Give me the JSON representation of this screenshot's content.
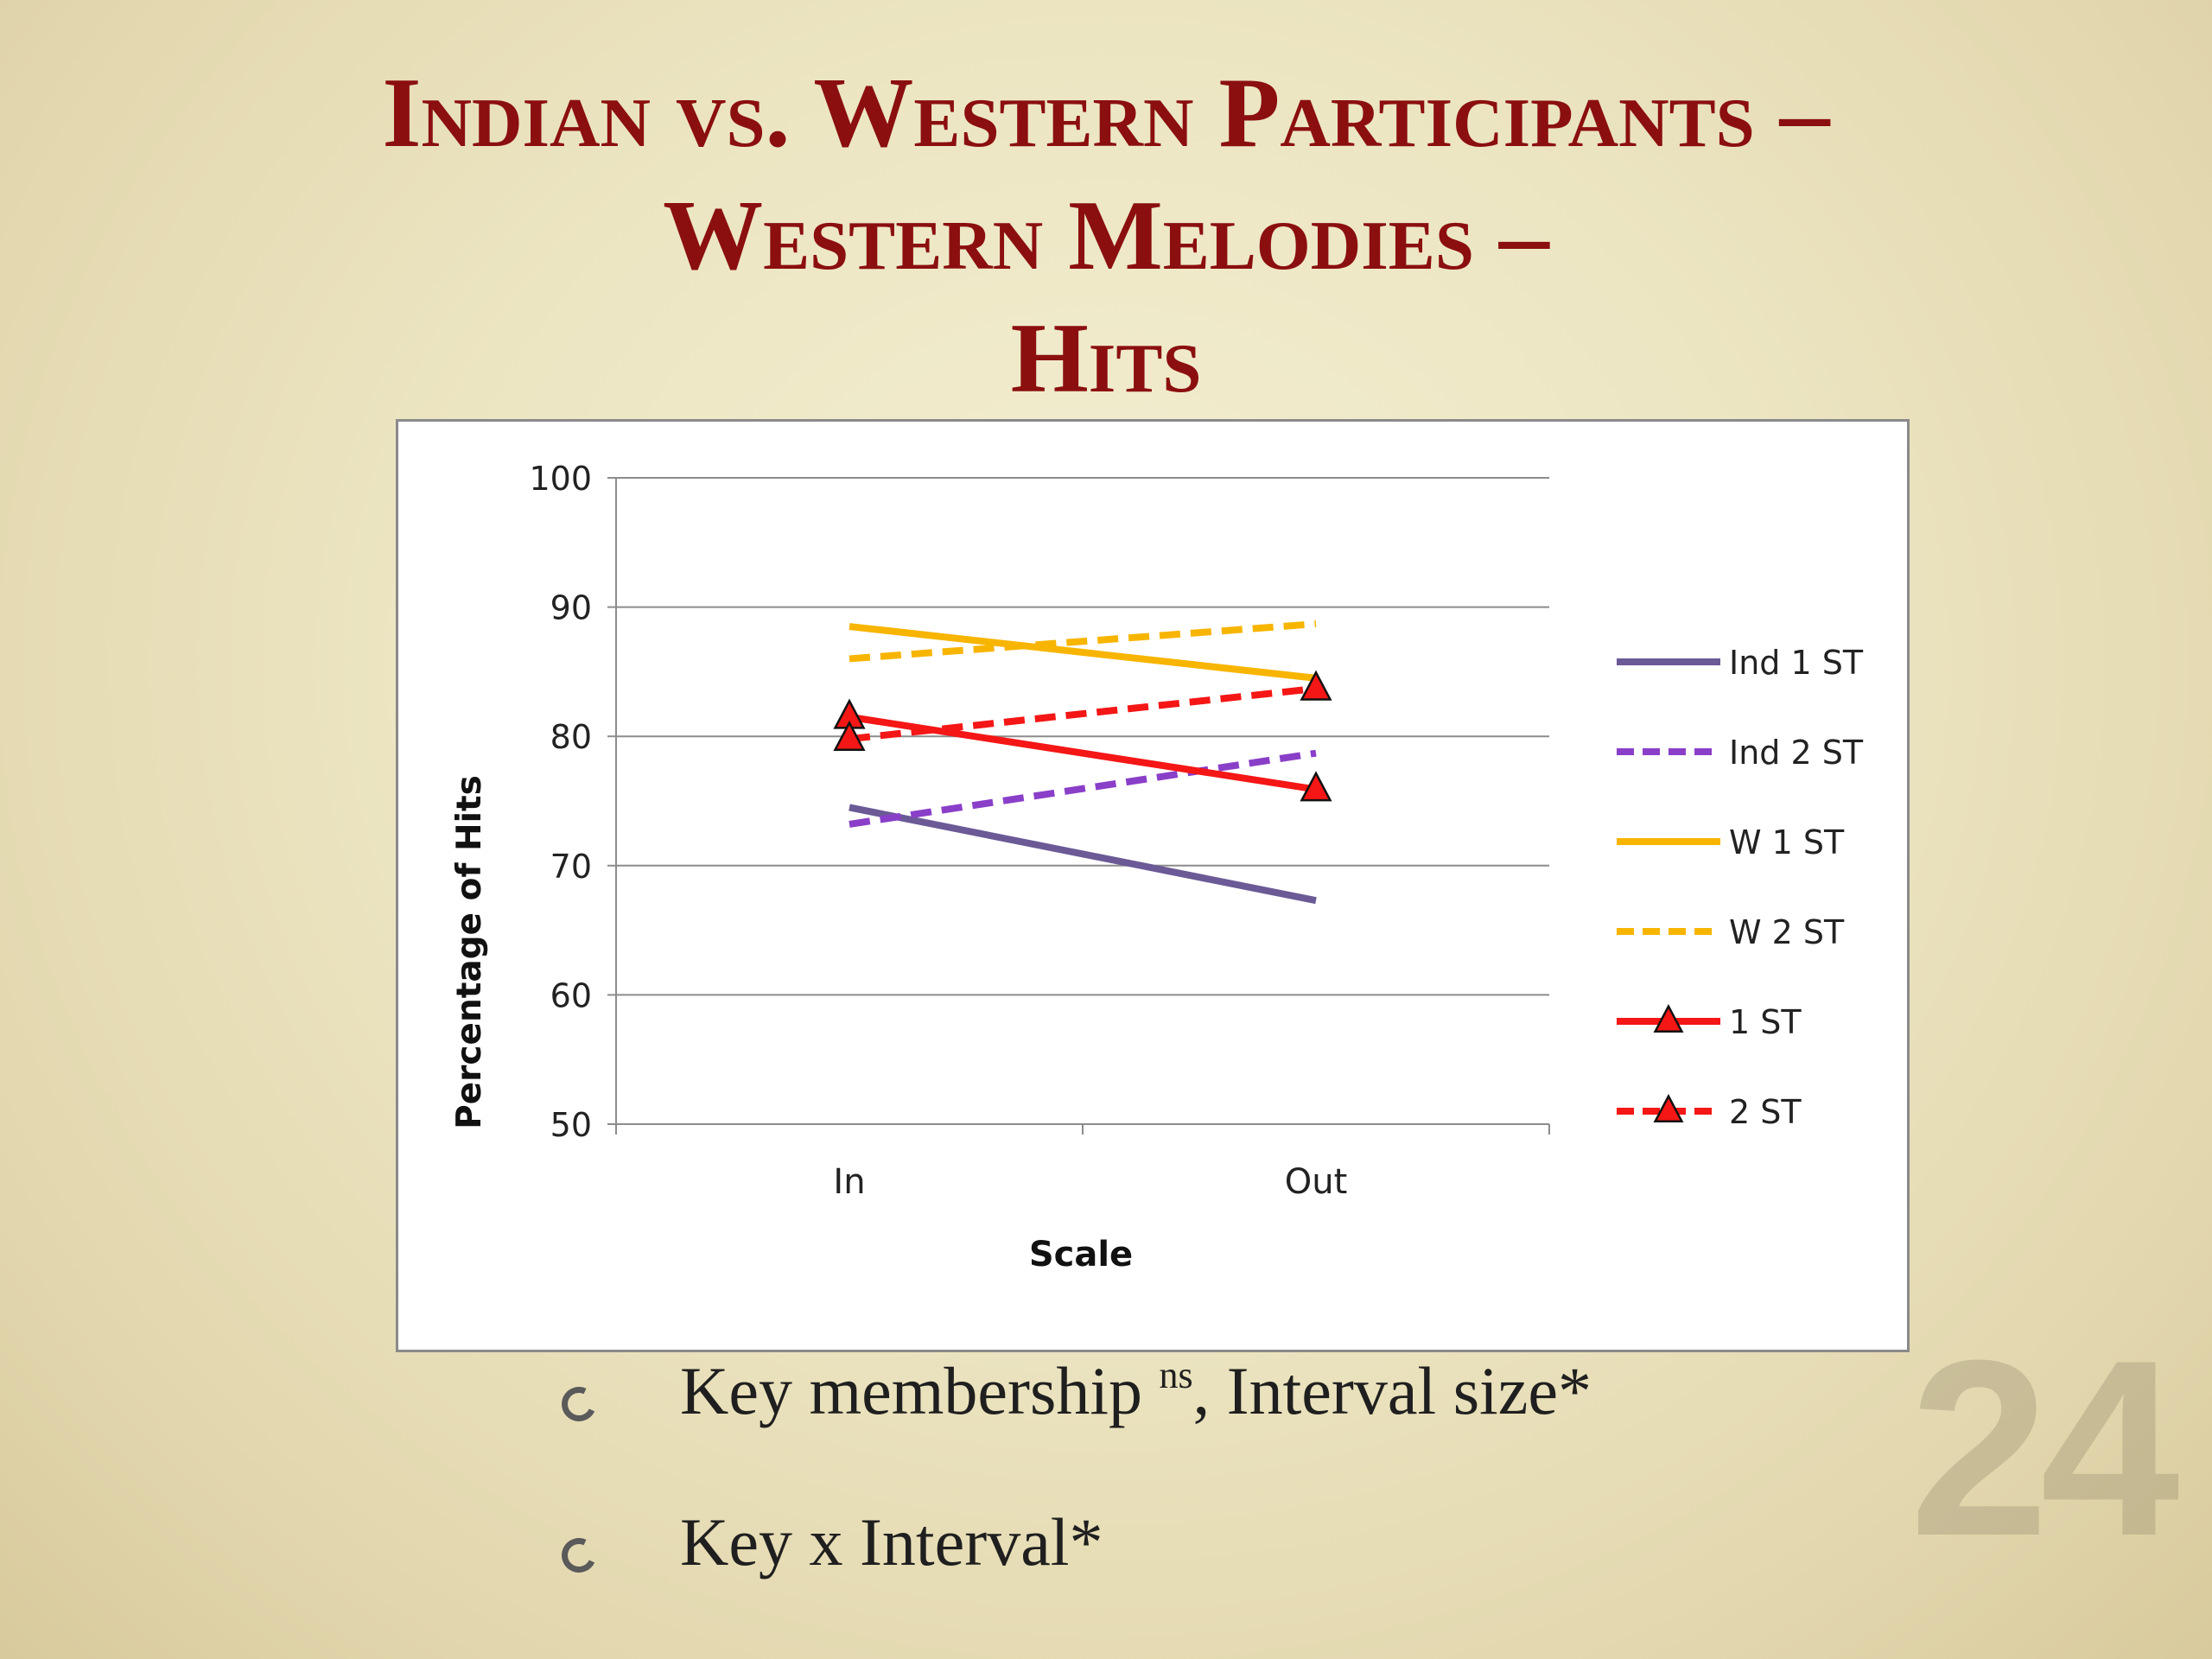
{
  "slide": {
    "title_lines": [
      "Indian vs. Western Participants –",
      "Western Melodies –",
      "Hits"
    ],
    "bullets": [
      {
        "text": "Key membership ",
        "sup": "ns",
        "rest": ", Interval size*"
      },
      {
        "text": "Key x Interval*",
        "sup": "",
        "rest": ""
      }
    ],
    "slide_number": "24"
  },
  "chart_data": {
    "type": "line",
    "categories": [
      "In",
      "Out"
    ],
    "xlabel": "Scale",
    "ylabel": "Percentage of Hits",
    "ylim": [
      50,
      100
    ],
    "yticks": [
      50,
      60,
      70,
      80,
      90,
      100
    ],
    "grid": true,
    "legend_position": "right",
    "series": [
      {
        "name": "Ind 1 ST",
        "values": [
          74.5,
          67.3
        ],
        "color": "#6b5a96",
        "dash": false,
        "marker": "none"
      },
      {
        "name": "Ind 2 ST",
        "values": [
          73.2,
          78.7
        ],
        "color": "#8a3fc8",
        "dash": true,
        "marker": "none"
      },
      {
        "name": "W 1 ST",
        "values": [
          88.5,
          84.5
        ],
        "color": "#f7b500",
        "dash": false,
        "marker": "none"
      },
      {
        "name": "W 2 ST",
        "values": [
          86.0,
          88.7
        ],
        "color": "#f7b500",
        "dash": true,
        "marker": "none"
      },
      {
        "name": "1 ST",
        "values": [
          81.5,
          75.9
        ],
        "color": "#f51616",
        "dash": false,
        "marker": "triangle"
      },
      {
        "name": "2 ST",
        "values": [
          79.8,
          83.7
        ],
        "color": "#f51616",
        "dash": true,
        "marker": "triangle"
      }
    ]
  }
}
